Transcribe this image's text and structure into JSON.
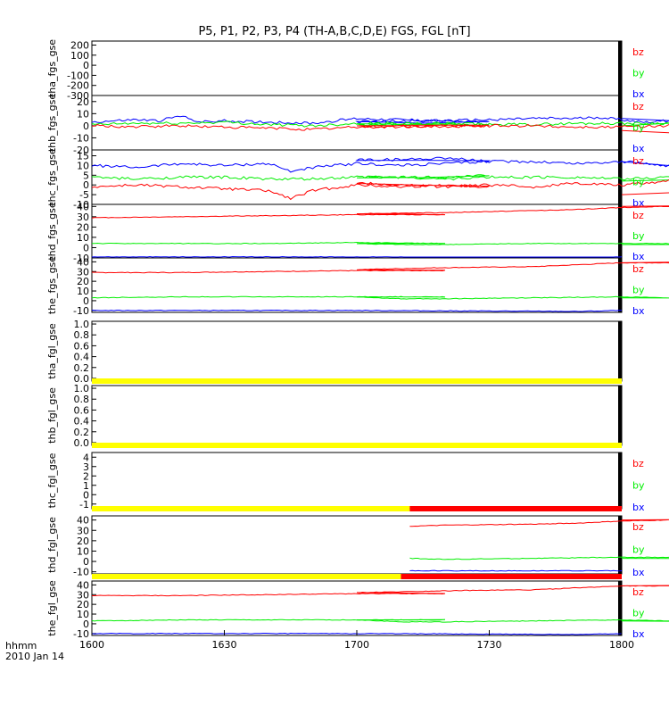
{
  "title": "P5, P1, P2, P3, P4 (TH-A,B,C,D,E) FGS, FGL [nT]",
  "footer": {
    "hhmm_label": "hhmm",
    "date_label": "2010 Jan 14"
  },
  "colors": {
    "bx": "#0000ff",
    "by": "#00ee00",
    "bz": "#ff0000",
    "bar_yellow": "#ffff00",
    "bar_red": "#ff0000"
  },
  "chart_data": [
    {
      "type": "line",
      "ylabel": "tha_fgs_gse",
      "yticks": [
        200,
        100,
        0,
        -100,
        -200,
        -300
      ],
      "ylim": [
        -300,
        240
      ],
      "x_range": [
        1600,
        1800
      ],
      "series": [
        {
          "name": "bz",
          "values": []
        },
        {
          "name": "by",
          "values": []
        },
        {
          "name": "bx",
          "values": []
        }
      ],
      "legend": [
        "bz",
        "by",
        "bx"
      ]
    },
    {
      "type": "line",
      "ylabel": "thb_fgs_gse",
      "yticks": [
        20,
        10,
        0,
        -10,
        -20
      ],
      "ylim": [
        -20,
        25
      ],
      "x_range": [
        1600,
        1800
      ],
      "series": [
        {
          "name": "bx",
          "x": [
            1600,
            1610,
            1615,
            1620,
            1625,
            1630,
            1640,
            1650,
            1660,
            1670,
            1680,
            1690,
            1700,
            1710,
            1720,
            1730,
            1740,
            1750,
            1755,
            1760,
            1765,
            1770,
            1775,
            1780,
            1785,
            1790,
            1795,
            1800
          ],
          "values": [
            3,
            5,
            4,
            8,
            3,
            4,
            3,
            2,
            6,
            5,
            4,
            3,
            3,
            4,
            4,
            5,
            6,
            6,
            7,
            5,
            3,
            4,
            6,
            12,
            9,
            6,
            2,
            6
          ]
        },
        {
          "name": "by",
          "x": [
            1600,
            1610,
            1620,
            1630,
            1640,
            1650,
            1660,
            1670,
            1680,
            1690,
            1700,
            1710,
            1720,
            1730,
            1740,
            1750,
            1760,
            1770,
            1780,
            1785,
            1790,
            1795,
            1800
          ],
          "values": [
            1,
            2,
            2,
            3,
            1,
            0,
            2,
            2,
            1,
            1,
            1,
            1,
            2,
            1,
            1,
            2,
            2,
            2,
            4,
            8,
            -2,
            5,
            0
          ]
        },
        {
          "name": "bz",
          "x": [
            1600,
            1610,
            1620,
            1630,
            1640,
            1650,
            1660,
            1670,
            1680,
            1690,
            1700,
            1710,
            1720,
            1730,
            1740,
            1750,
            1760,
            1770,
            1780,
            1785,
            1790,
            1795,
            1800
          ],
          "values": [
            0,
            -1,
            0,
            -1,
            -2,
            -3,
            -1,
            -1,
            0,
            0,
            -1,
            0,
            -1,
            0,
            0,
            -1,
            -1,
            0,
            4,
            -8,
            6,
            -10,
            -4
          ]
        }
      ],
      "legend": [
        "bz",
        "by",
        "bx"
      ]
    },
    {
      "type": "line",
      "ylabel": "thc_fgs_gse",
      "yticks": [
        15,
        10,
        5,
        0,
        -5,
        -10
      ],
      "ylim": [
        -10,
        18
      ],
      "x_range": [
        1600,
        1800
      ],
      "series": [
        {
          "name": "bx",
          "x": [
            1600,
            1610,
            1620,
            1630,
            1640,
            1645,
            1650,
            1660,
            1670,
            1680,
            1690,
            1700,
            1710,
            1720,
            1730,
            1740,
            1750,
            1760,
            1770,
            1780,
            1790,
            1795,
            1800
          ],
          "values": [
            10,
            9,
            11,
            10,
            11,
            7,
            9,
            11,
            10,
            11,
            12,
            13,
            13,
            14,
            12,
            12,
            11,
            12,
            10,
            11,
            8,
            6,
            12
          ]
        },
        {
          "name": "by",
          "x": [
            1600,
            1610,
            1620,
            1630,
            1640,
            1650,
            1660,
            1670,
            1680,
            1690,
            1700,
            1710,
            1720,
            1730,
            1740,
            1750,
            1760,
            1770,
            1780,
            1790,
            1800
          ],
          "values": [
            4,
            3,
            4,
            4,
            3,
            3,
            4,
            4,
            4,
            5,
            4,
            4,
            3,
            4,
            4,
            4,
            3,
            4,
            3,
            4,
            2
          ]
        },
        {
          "name": "bz",
          "x": [
            1600,
            1610,
            1620,
            1630,
            1640,
            1645,
            1650,
            1660,
            1670,
            1680,
            1690,
            1700,
            1710,
            1720,
            1730,
            1740,
            1750,
            1760,
            1770,
            1780,
            1790,
            1800
          ],
          "values": [
            -1,
            0,
            -1,
            -2,
            -3,
            -7,
            -3,
            0,
            -1,
            0,
            -1,
            1,
            0,
            -1,
            0,
            -1,
            1,
            0,
            2,
            0,
            -2,
            -5
          ]
        }
      ],
      "legend": [
        "bz",
        "by",
        "bx"
      ]
    },
    {
      "type": "line",
      "ylabel": "thd_fgs_gse",
      "yticks": [
        40,
        30,
        20,
        10,
        0,
        -10
      ],
      "ylim": [
        -10,
        42
      ],
      "x_range": [
        1600,
        1800
      ],
      "series": [
        {
          "name": "bz",
          "x": [
            1600,
            1620,
            1640,
            1660,
            1680,
            1700,
            1720,
            1740,
            1750,
            1760,
            1770,
            1780,
            1790,
            1800
          ],
          "values": [
            29,
            30,
            31,
            32,
            32,
            33,
            34,
            36,
            37,
            39,
            40,
            41,
            41,
            40
          ]
        },
        {
          "name": "by",
          "x": [
            1600,
            1620,
            1640,
            1660,
            1680,
            1700,
            1710,
            1720,
            1740,
            1760,
            1770,
            1780,
            1790,
            1800
          ],
          "values": [
            4,
            4,
            4,
            5,
            4,
            4,
            3,
            3,
            4,
            4,
            4,
            3,
            3,
            3
          ]
        },
        {
          "name": "bx",
          "x": [
            1600,
            1650,
            1700,
            1750,
            1800
          ],
          "values": [
            -9,
            -9,
            -9,
            -10,
            -9
          ]
        }
      ],
      "legend": [
        "bz",
        "by",
        "bx"
      ]
    },
    {
      "type": "line",
      "ylabel": "the_fgs_gse",
      "yticks": [
        40,
        30,
        20,
        10,
        0,
        -10
      ],
      "ylim": [
        -12,
        44
      ],
      "x_range": [
        1600,
        1800
      ],
      "series": [
        {
          "name": "bz",
          "x": [
            1600,
            1620,
            1640,
            1660,
            1680,
            1700,
            1720,
            1740,
            1750,
            1760,
            1770,
            1780,
            1790,
            1800
          ],
          "values": [
            29,
            29,
            30,
            31,
            31,
            32,
            34,
            35,
            37,
            39,
            39,
            40,
            40,
            39
          ]
        },
        {
          "name": "by",
          "x": [
            1600,
            1620,
            1640,
            1660,
            1680,
            1700,
            1710,
            1720,
            1740,
            1760,
            1770,
            1780,
            1790,
            1800
          ],
          "values": [
            3,
            4,
            4,
            4,
            4,
            4,
            2,
            2,
            3,
            4,
            3,
            2,
            2,
            3
          ]
        },
        {
          "name": "bx",
          "x": [
            1600,
            1650,
            1700,
            1750,
            1800
          ],
          "values": [
            -10,
            -10,
            -10,
            -11,
            -10
          ]
        }
      ],
      "legend": [
        "bz",
        "by",
        "bx"
      ]
    },
    {
      "type": "line",
      "ylabel": "tha_fgl_gse",
      "yticks": [
        "1.0",
        "0.8",
        "0.6",
        "0.4",
        "0.2",
        "0.0"
      ],
      "ylim": [
        -0.05,
        1.05
      ],
      "x_range": [
        1600,
        1800
      ],
      "series": [],
      "status_bar": [
        {
          "from": 1600,
          "to": 1800,
          "color": "yellow"
        }
      ]
    },
    {
      "type": "line",
      "ylabel": "thb_fgl_gse",
      "yticks": [
        "1.0",
        "0.8",
        "0.6",
        "0.4",
        "0.2",
        "0.0"
      ],
      "ylim": [
        -0.05,
        1.05
      ],
      "x_range": [
        1600,
        1800
      ],
      "series": [],
      "status_bar": [
        {
          "from": 1600,
          "to": 1800,
          "color": "yellow"
        }
      ]
    },
    {
      "type": "line",
      "ylabel": "thc_fgl_gse",
      "yticks": [
        4,
        3,
        2,
        1,
        0,
        -1
      ],
      "ylim": [
        -1.5,
        4.5
      ],
      "x_range": [
        1600,
        1800
      ],
      "series": [
        {
          "name": "bz",
          "values": []
        },
        {
          "name": "by",
          "values": []
        },
        {
          "name": "bx",
          "values": []
        }
      ],
      "legend": [
        "bz",
        "by",
        "bx"
      ],
      "status_bar": [
        {
          "from": 1600,
          "to": 1712,
          "color": "yellow"
        },
        {
          "from": 1712,
          "to": 1800,
          "color": "red"
        }
      ]
    },
    {
      "type": "line",
      "ylabel": "thd_fgl_gse",
      "yticks": [
        40,
        30,
        20,
        10,
        0,
        -10
      ],
      "ylim": [
        -12,
        44
      ],
      "x_range": [
        1600,
        1800
      ],
      "series": [
        {
          "name": "bz",
          "x": [
            1712,
            1720,
            1740,
            1750,
            1760,
            1770,
            1780,
            1790,
            1800
          ],
          "values": [
            34,
            35,
            36,
            37,
            39,
            40,
            41,
            41,
            40
          ]
        },
        {
          "name": "by",
          "x": [
            1712,
            1720,
            1740,
            1760,
            1770,
            1780,
            1790,
            1800
          ],
          "values": [
            3,
            2,
            3,
            4,
            4,
            3,
            3,
            3
          ]
        },
        {
          "name": "bx",
          "x": [
            1712,
            1750,
            1800
          ],
          "values": [
            -9,
            -9,
            -9
          ]
        }
      ],
      "legend": [
        "bz",
        "by",
        "bx"
      ],
      "status_bar": [
        {
          "from": 1600,
          "to": 1710,
          "color": "yellow"
        },
        {
          "from": 1710,
          "to": 1800,
          "color": "red"
        }
      ]
    },
    {
      "type": "line",
      "ylabel": "the_fgl_gse",
      "yticks": [
        40,
        30,
        20,
        10,
        0,
        -10
      ],
      "ylim": [
        -12,
        44
      ],
      "x_range": [
        1600,
        1800
      ],
      "series": [
        {
          "name": "bz",
          "x": [
            1600,
            1620,
            1640,
            1660,
            1680,
            1700,
            1720,
            1740,
            1750,
            1760,
            1770,
            1780,
            1790,
            1800
          ],
          "values": [
            29,
            29,
            30,
            31,
            31,
            32,
            34,
            35,
            37,
            39,
            39,
            40,
            40,
            39
          ]
        },
        {
          "name": "by",
          "x": [
            1600,
            1620,
            1640,
            1660,
            1680,
            1700,
            1710,
            1720,
            1740,
            1760,
            1770,
            1780,
            1790,
            1800
          ],
          "values": [
            3,
            4,
            4,
            4,
            4,
            4,
            2,
            2,
            3,
            4,
            3,
            2,
            2,
            3
          ]
        },
        {
          "name": "bx",
          "x": [
            1600,
            1650,
            1700,
            1750,
            1800
          ],
          "values": [
            -10,
            -10,
            -10,
            -11,
            -10
          ]
        }
      ],
      "legend": [
        "bz",
        "by",
        "bx"
      ]
    }
  ],
  "x_axis": {
    "ticks": [
      1600,
      1630,
      1700,
      1730,
      1800
    ],
    "labels": [
      "1600",
      "1630",
      "1700",
      "1730",
      "1800"
    ]
  }
}
